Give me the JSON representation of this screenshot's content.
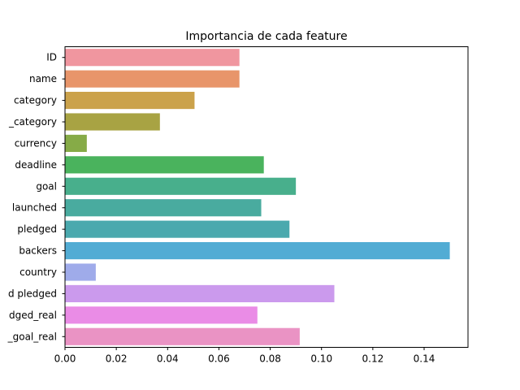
{
  "chart_data": {
    "type": "bar",
    "orientation": "horizontal",
    "title": "Importancia de cada feature",
    "xlabel": "",
    "ylabel": "",
    "xlim": [
      0,
      0.1571
    ],
    "xticks": [
      "0.00",
      "0.02",
      "0.04",
      "0.06",
      "0.08",
      "0.10",
      "0.12",
      "0.14"
    ],
    "grid": false,
    "categories": [
      "ID",
      "name",
      "category",
      "_category",
      "currency",
      "deadline",
      "goal",
      "launched",
      "pledged",
      "backers",
      "country",
      "d pledged",
      "dged_real",
      "_goal_real"
    ],
    "values": [
      0.068,
      0.068,
      0.0505,
      0.037,
      0.0085,
      0.0775,
      0.09,
      0.0765,
      0.0875,
      0.15,
      0.012,
      0.105,
      0.075,
      0.0915
    ],
    "colors": [
      "#f0969f",
      "#e8956a",
      "#cba24b",
      "#a8a343",
      "#86ab47",
      "#4ab35d",
      "#48af8c",
      "#49ab9f",
      "#4aa9ae",
      "#52acd4",
      "#9fabea",
      "#cb9aed",
      "#ea8ce6",
      "#ea93c4"
    ]
  }
}
